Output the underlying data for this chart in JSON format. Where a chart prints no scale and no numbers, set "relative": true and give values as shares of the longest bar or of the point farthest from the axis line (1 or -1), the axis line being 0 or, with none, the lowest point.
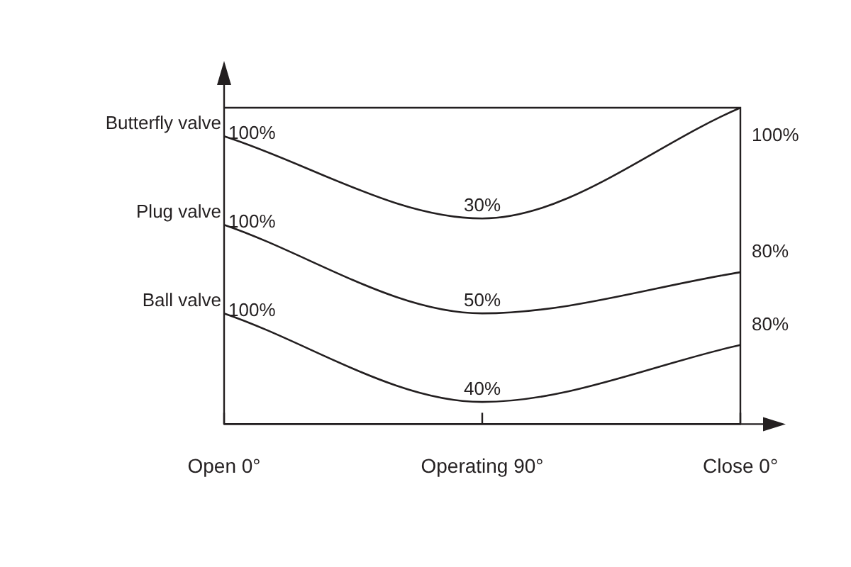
{
  "chart_data": {
    "type": "line",
    "relative": true,
    "categories": [
      "Open 0°",
      "Operating 90°",
      "Close 0°"
    ],
    "series": [
      {
        "name": "Butterfly valve",
        "color": "#231f20",
        "values": [
          0.91,
          0.65,
          1
        ]
      },
      {
        "name": "Plug valve",
        "color": "#231f20",
        "values": [
          0.63,
          0.35,
          0.48
        ]
      },
      {
        "name": "Ball valve",
        "color": "#231f20",
        "values": [
          0.35,
          0.07,
          0.25
        ]
      }
    ],
    "annotations": [
      {
        "text": "100%",
        "x": "Open 0°",
        "y": 0.91
      },
      {
        "text": "30%",
        "x": "Operating 90°",
        "y": 0.65
      },
      {
        "text": "100%",
        "x": "Close 0°",
        "y": 1
      },
      {
        "text": "100%",
        "x": "Open 0°",
        "y": 0.63
      },
      {
        "text": "50%",
        "x": "Operating 90°",
        "y": 0.35
      },
      {
        "text": "80%",
        "x": "Close 0°",
        "y": 0.48
      },
      {
        "text": "100%",
        "x": "Open 0°",
        "y": 0.35
      },
      {
        "text": "40%",
        "x": "Operating 90°",
        "y": 0.07
      },
      {
        "text": "80%",
        "x": "Close 0°",
        "y": 0.25
      }
    ]
  }
}
